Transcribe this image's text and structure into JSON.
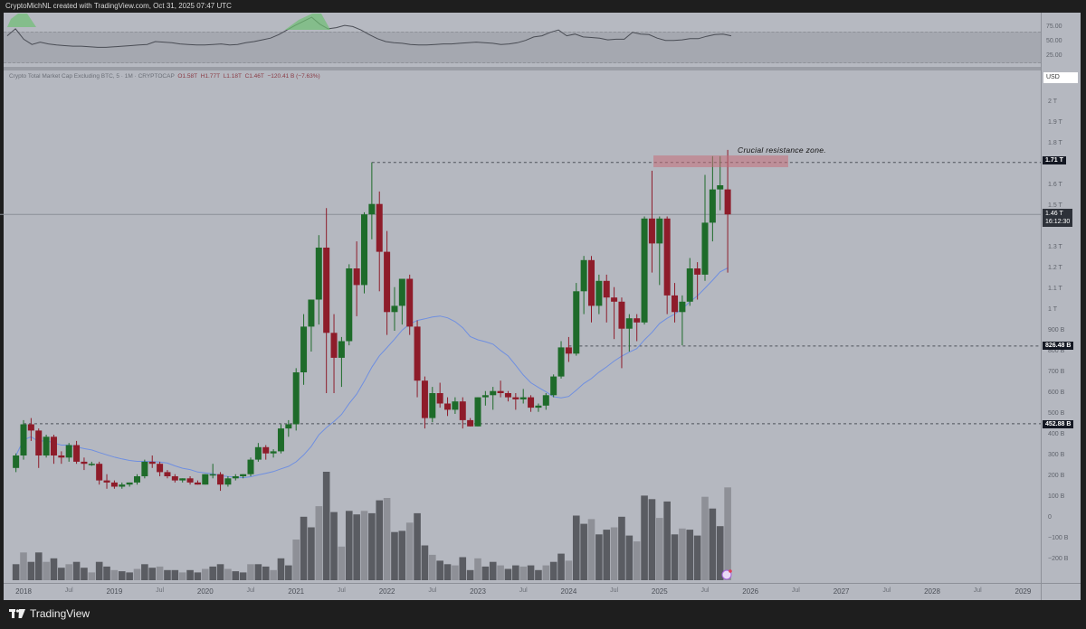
{
  "header": {
    "attribution": "CryptoMichNL created with TradingView.com, Oct 31, 2025 07:47 UTC"
  },
  "legend": {
    "symbol": "Crypto Total Market Cap Excluding BTC",
    "interval_text": "Crypto Total Market Cap Excluding BTC, 5 · 1M · CRYPTOCAP",
    "open": "O1.58T",
    "high": "H1.77T",
    "low": "L1.18T",
    "close": "C1.46T",
    "change": "−120.41 B (−7.63%)"
  },
  "price_axis": {
    "currency": "USD",
    "labels": [
      "2 T",
      "1.9 T",
      "1.8 T",
      "1.6 T",
      "1.5 T",
      "1.3 T",
      "1.2 T",
      "1.1 T",
      "1 T",
      "900 B",
      "800 B",
      "700 B",
      "600 B",
      "500 B",
      "400 B",
      "300 B",
      "200 B",
      "100 B",
      "0",
      "−100 B",
      "−200 B"
    ],
    "tags": {
      "resistance": "1.71 T",
      "current_price": "1.46 T",
      "countdown": "16:12:30",
      "support_1": "826.48 B",
      "support_2": "452.88 B"
    }
  },
  "rsi_axis": {
    "labels": [
      "75.00",
      "50.00",
      "25.00"
    ]
  },
  "time_axis": {
    "labels": [
      "2018",
      "Jul",
      "2019",
      "Jul",
      "2020",
      "Jul",
      "2021",
      "Jul",
      "2022",
      "Jul",
      "2023",
      "Jul",
      "2024",
      "Jul",
      "2025",
      "Jul",
      "2026",
      "Jul",
      "2027",
      "Jul",
      "2028",
      "Jul",
      "2029"
    ]
  },
  "annotation": {
    "text": "Crucial resistance zone."
  },
  "footer": {
    "brand": "TradingView"
  },
  "colors": {
    "up": "#1e6b2a",
    "down": "#8e1c2a",
    "ma": "#6f8fe0",
    "volume_dark": "#5a5c62",
    "volume_light": "#8e9097",
    "resistance_zone": "#c46e78",
    "rsi_line": "#4a4d55",
    "rsi_overbought_fill": "#6fbf73"
  },
  "chart_data": {
    "type": "candlestick",
    "title": "Crypto Total Market Cap Excluding BTC, 5 · 1M · CRYPTOCAP",
    "interval": "1M",
    "unit": "USD (T = trillion)",
    "ylim": [
      -0.25,
      2.05
    ],
    "x_range": [
      "2018-01",
      "2029-06"
    ],
    "levels": {
      "resistance": 1.71,
      "support_1": 0.82648,
      "support_2": 0.45288,
      "current": 1.46
    },
    "resistance_zone": {
      "from": 1.67,
      "to": 1.73,
      "label": "Crucial resistance zone."
    },
    "last_bar": {
      "open": 1.58,
      "high": 1.77,
      "low": 1.18,
      "close": 1.46,
      "change": -0.12041,
      "change_pct": -7.63
    },
    "candles": [
      {
        "t": "2017-12",
        "o": 0.24,
        "h": 0.31,
        "l": 0.22,
        "c": 0.3
      },
      {
        "t": "2018-01",
        "o": 0.3,
        "h": 0.47,
        "l": 0.28,
        "c": 0.45
      },
      {
        "t": "2018-02",
        "o": 0.45,
        "h": 0.48,
        "l": 0.37,
        "c": 0.42
      },
      {
        "t": "2018-03",
        "o": 0.42,
        "h": 0.43,
        "l": 0.24,
        "c": 0.3
      },
      {
        "t": "2018-04",
        "o": 0.3,
        "h": 0.4,
        "l": 0.29,
        "c": 0.39
      },
      {
        "t": "2018-05",
        "o": 0.39,
        "h": 0.4,
        "l": 0.26,
        "c": 0.3
      },
      {
        "t": "2018-06",
        "o": 0.3,
        "h": 0.32,
        "l": 0.26,
        "c": 0.29
      },
      {
        "t": "2018-07",
        "o": 0.29,
        "h": 0.36,
        "l": 0.27,
        "c": 0.35
      },
      {
        "t": "2018-08",
        "o": 0.35,
        "h": 0.37,
        "l": 0.26,
        "c": 0.27
      },
      {
        "t": "2018-09",
        "o": 0.27,
        "h": 0.29,
        "l": 0.23,
        "c": 0.26
      },
      {
        "t": "2018-10",
        "o": 0.26,
        "h": 0.27,
        "l": 0.25,
        "c": 0.26
      },
      {
        "t": "2018-11",
        "o": 0.26,
        "h": 0.27,
        "l": 0.16,
        "c": 0.18
      },
      {
        "t": "2018-12",
        "o": 0.18,
        "h": 0.21,
        "l": 0.14,
        "c": 0.17
      },
      {
        "t": "2019-01",
        "o": 0.17,
        "h": 0.18,
        "l": 0.14,
        "c": 0.15
      },
      {
        "t": "2019-02",
        "o": 0.15,
        "h": 0.17,
        "l": 0.14,
        "c": 0.16
      },
      {
        "t": "2019-03",
        "o": 0.16,
        "h": 0.17,
        "l": 0.15,
        "c": 0.17
      },
      {
        "t": "2019-04",
        "o": 0.17,
        "h": 0.21,
        "l": 0.16,
        "c": 0.2
      },
      {
        "t": "2019-05",
        "o": 0.2,
        "h": 0.28,
        "l": 0.19,
        "c": 0.27
      },
      {
        "t": "2019-06",
        "o": 0.27,
        "h": 0.3,
        "l": 0.24,
        "c": 0.26
      },
      {
        "t": "2019-07",
        "o": 0.26,
        "h": 0.27,
        "l": 0.2,
        "c": 0.22
      },
      {
        "t": "2019-08",
        "o": 0.22,
        "h": 0.23,
        "l": 0.19,
        "c": 0.2
      },
      {
        "t": "2019-09",
        "o": 0.2,
        "h": 0.21,
        "l": 0.17,
        "c": 0.18
      },
      {
        "t": "2019-10",
        "o": 0.18,
        "h": 0.19,
        "l": 0.17,
        "c": 0.19
      },
      {
        "t": "2019-11",
        "o": 0.19,
        "h": 0.2,
        "l": 0.16,
        "c": 0.17
      },
      {
        "t": "2019-12",
        "o": 0.17,
        "h": 0.18,
        "l": 0.16,
        "c": 0.16
      },
      {
        "t": "2020-01",
        "o": 0.16,
        "h": 0.21,
        "l": 0.16,
        "c": 0.21
      },
      {
        "t": "2020-02",
        "o": 0.21,
        "h": 0.26,
        "l": 0.19,
        "c": 0.21
      },
      {
        "t": "2020-03",
        "o": 0.21,
        "h": 0.22,
        "l": 0.13,
        "c": 0.16
      },
      {
        "t": "2020-04",
        "o": 0.16,
        "h": 0.2,
        "l": 0.15,
        "c": 0.19
      },
      {
        "t": "2020-05",
        "o": 0.19,
        "h": 0.21,
        "l": 0.18,
        "c": 0.2
      },
      {
        "t": "2020-06",
        "o": 0.2,
        "h": 0.21,
        "l": 0.19,
        "c": 0.21
      },
      {
        "t": "2020-07",
        "o": 0.21,
        "h": 0.29,
        "l": 0.2,
        "c": 0.28
      },
      {
        "t": "2020-08",
        "o": 0.28,
        "h": 0.36,
        "l": 0.27,
        "c": 0.34
      },
      {
        "t": "2020-09",
        "o": 0.34,
        "h": 0.35,
        "l": 0.28,
        "c": 0.31
      },
      {
        "t": "2020-10",
        "o": 0.31,
        "h": 0.33,
        "l": 0.29,
        "c": 0.32
      },
      {
        "t": "2020-11",
        "o": 0.32,
        "h": 0.45,
        "l": 0.31,
        "c": 0.43
      },
      {
        "t": "2020-12",
        "o": 0.43,
        "h": 0.47,
        "l": 0.39,
        "c": 0.45
      },
      {
        "t": "2021-01",
        "o": 0.45,
        "h": 0.72,
        "l": 0.42,
        "c": 0.7
      },
      {
        "t": "2021-02",
        "o": 0.7,
        "h": 0.98,
        "l": 0.64,
        "c": 0.92
      },
      {
        "t": "2021-03",
        "o": 0.92,
        "h": 1.05,
        "l": 0.8,
        "c": 1.05
      },
      {
        "t": "2021-04",
        "o": 1.05,
        "h": 1.36,
        "l": 0.93,
        "c": 1.3
      },
      {
        "t": "2021-05",
        "o": 1.3,
        "h": 1.49,
        "l": 0.6,
        "c": 0.89
      },
      {
        "t": "2021-06",
        "o": 0.89,
        "h": 0.98,
        "l": 0.6,
        "c": 0.77
      },
      {
        "t": "2021-07",
        "o": 0.77,
        "h": 0.87,
        "l": 0.63,
        "c": 0.85
      },
      {
        "t": "2021-08",
        "o": 0.85,
        "h": 1.22,
        "l": 0.83,
        "c": 1.2
      },
      {
        "t": "2021-09",
        "o": 1.2,
        "h": 1.33,
        "l": 0.97,
        "c": 1.12
      },
      {
        "t": "2021-10",
        "o": 1.12,
        "h": 1.47,
        "l": 1.08,
        "c": 1.46
      },
      {
        "t": "2021-11",
        "o": 1.46,
        "h": 1.71,
        "l": 1.34,
        "c": 1.51
      },
      {
        "t": "2021-12",
        "o": 1.51,
        "h": 1.57,
        "l": 1.09,
        "c": 1.28
      },
      {
        "t": "2022-01",
        "o": 1.28,
        "h": 1.38,
        "l": 0.88,
        "c": 0.99
      },
      {
        "t": "2022-02",
        "o": 0.99,
        "h": 1.11,
        "l": 0.9,
        "c": 1.02
      },
      {
        "t": "2022-03",
        "o": 1.02,
        "h": 1.15,
        "l": 0.93,
        "c": 1.15
      },
      {
        "t": "2022-04",
        "o": 1.15,
        "h": 1.17,
        "l": 0.88,
        "c": 0.92
      },
      {
        "t": "2022-05",
        "o": 0.92,
        "h": 0.95,
        "l": 0.58,
        "c": 0.66
      },
      {
        "t": "2022-06",
        "o": 0.66,
        "h": 0.68,
        "l": 0.43,
        "c": 0.48
      },
      {
        "t": "2022-07",
        "o": 0.48,
        "h": 0.63,
        "l": 0.46,
        "c": 0.6
      },
      {
        "t": "2022-08",
        "o": 0.6,
        "h": 0.65,
        "l": 0.53,
        "c": 0.55
      },
      {
        "t": "2022-09",
        "o": 0.55,
        "h": 0.58,
        "l": 0.49,
        "c": 0.52
      },
      {
        "t": "2022-10",
        "o": 0.52,
        "h": 0.58,
        "l": 0.5,
        "c": 0.56
      },
      {
        "t": "2022-11",
        "o": 0.56,
        "h": 0.58,
        "l": 0.43,
        "c": 0.47
      },
      {
        "t": "2022-12",
        "o": 0.47,
        "h": 0.48,
        "l": 0.44,
        "c": 0.44
      },
      {
        "t": "2023-01",
        "o": 0.44,
        "h": 0.58,
        "l": 0.44,
        "c": 0.58
      },
      {
        "t": "2023-02",
        "o": 0.58,
        "h": 0.61,
        "l": 0.54,
        "c": 0.59
      },
      {
        "t": "2023-03",
        "o": 0.59,
        "h": 0.63,
        "l": 0.52,
        "c": 0.61
      },
      {
        "t": "2023-04",
        "o": 0.61,
        "h": 0.66,
        "l": 0.58,
        "c": 0.6
      },
      {
        "t": "2023-05",
        "o": 0.6,
        "h": 0.61,
        "l": 0.56,
        "c": 0.58
      },
      {
        "t": "2023-06",
        "o": 0.58,
        "h": 0.6,
        "l": 0.52,
        "c": 0.57
      },
      {
        "t": "2023-07",
        "o": 0.57,
        "h": 0.62,
        "l": 0.55,
        "c": 0.58
      },
      {
        "t": "2023-08",
        "o": 0.58,
        "h": 0.59,
        "l": 0.51,
        "c": 0.53
      },
      {
        "t": "2023-09",
        "o": 0.53,
        "h": 0.55,
        "l": 0.51,
        "c": 0.54
      },
      {
        "t": "2023-10",
        "o": 0.54,
        "h": 0.6,
        "l": 0.52,
        "c": 0.59
      },
      {
        "t": "2023-11",
        "o": 0.59,
        "h": 0.69,
        "l": 0.58,
        "c": 0.68
      },
      {
        "t": "2023-12",
        "o": 0.68,
        "h": 0.85,
        "l": 0.67,
        "c": 0.82
      },
      {
        "t": "2024-01",
        "o": 0.82,
        "h": 0.87,
        "l": 0.75,
        "c": 0.79
      },
      {
        "t": "2024-02",
        "o": 0.79,
        "h": 1.13,
        "l": 0.78,
        "c": 1.09
      },
      {
        "t": "2024-03",
        "o": 1.09,
        "h": 1.26,
        "l": 0.98,
        "c": 1.24
      },
      {
        "t": "2024-04",
        "o": 1.24,
        "h": 1.26,
        "l": 0.94,
        "c": 1.02
      },
      {
        "t": "2024-05",
        "o": 1.02,
        "h": 1.17,
        "l": 0.98,
        "c": 1.14
      },
      {
        "t": "2024-06",
        "o": 1.14,
        "h": 1.17,
        "l": 0.94,
        "c": 1.06
      },
      {
        "t": "2024-07",
        "o": 1.06,
        "h": 1.11,
        "l": 0.86,
        "c": 1.04
      },
      {
        "t": "2024-08",
        "o": 1.04,
        "h": 1.06,
        "l": 0.72,
        "c": 0.91
      },
      {
        "t": "2024-09",
        "o": 0.91,
        "h": 0.98,
        "l": 0.8,
        "c": 0.96
      },
      {
        "t": "2024-10",
        "o": 0.96,
        "h": 0.98,
        "l": 0.85,
        "c": 0.94
      },
      {
        "t": "2024-11",
        "o": 0.94,
        "h": 1.45,
        "l": 0.93,
        "c": 1.44
      },
      {
        "t": "2024-12",
        "o": 1.44,
        "h": 1.67,
        "l": 1.18,
        "c": 1.32
      },
      {
        "t": "2025-01",
        "o": 1.32,
        "h": 1.45,
        "l": 1.12,
        "c": 1.44
      },
      {
        "t": "2025-02",
        "o": 1.44,
        "h": 1.45,
        "l": 0.98,
        "c": 1.07
      },
      {
        "t": "2025-03",
        "o": 1.07,
        "h": 1.13,
        "l": 0.94,
        "c": 0.99
      },
      {
        "t": "2025-04",
        "o": 0.99,
        "h": 1.07,
        "l": 0.83,
        "c": 1.04
      },
      {
        "t": "2025-05",
        "o": 1.04,
        "h": 1.25,
        "l": 1.02,
        "c": 1.2
      },
      {
        "t": "2025-06",
        "o": 1.2,
        "h": 1.23,
        "l": 1.05,
        "c": 1.17
      },
      {
        "t": "2025-07",
        "o": 1.17,
        "h": 1.65,
        "l": 1.14,
        "c": 1.42
      },
      {
        "t": "2025-08",
        "o": 1.42,
        "h": 1.74,
        "l": 1.33,
        "c": 1.58
      },
      {
        "t": "2025-09",
        "o": 1.58,
        "h": 1.74,
        "l": 1.48,
        "c": 1.6
      },
      {
        "t": "2025-10",
        "o": 1.58,
        "h": 1.77,
        "l": 1.18,
        "c": 1.46
      }
    ]
  }
}
